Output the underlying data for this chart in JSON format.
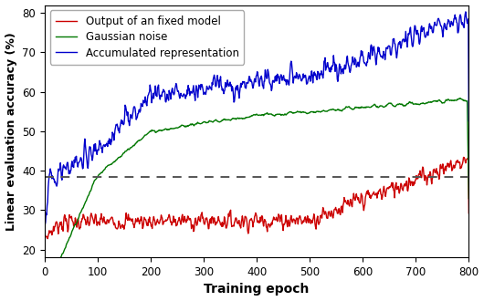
{
  "title": "",
  "xlabel": "Training epoch",
  "ylabel": "Linear evaluation accuracy (%)",
  "xlim": [
    0,
    800
  ],
  "ylim": [
    18,
    82
  ],
  "yticks": [
    20,
    30,
    40,
    50,
    60,
    70,
    80
  ],
  "xticks": [
    0,
    100,
    200,
    300,
    400,
    500,
    600,
    700,
    800
  ],
  "dashed_line_y": 38.5,
  "legend_labels": [
    "Output of an fixed model",
    "Gaussian noise",
    "Accumulated representation"
  ],
  "line_colors": [
    "#cc0000",
    "#007700",
    "#0000cc"
  ],
  "linewidth": 1.0
}
